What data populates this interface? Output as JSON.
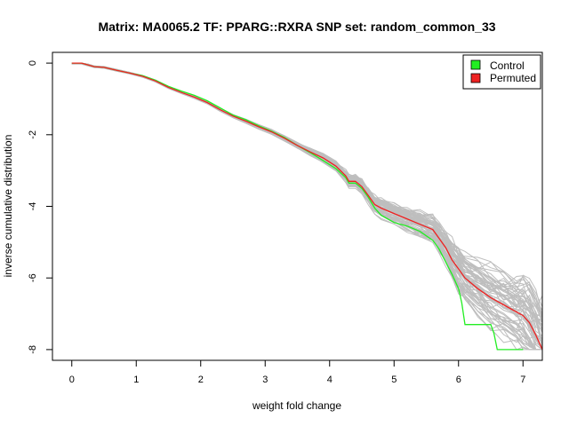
{
  "chart_data": {
    "type": "line",
    "title": "Matrix: MA0065.2 TF: PPARG::RXRA SNP set: random_common_33",
    "xlabel": "weight fold change",
    "ylabel": "inverse cumulative distribution",
    "xlim": [
      -0.3,
      7.3
    ],
    "ylim": [
      -8.3,
      0.3
    ],
    "x_ticks": [
      0,
      1,
      2,
      3,
      4,
      5,
      6,
      7
    ],
    "y_ticks": [
      0,
      -2,
      -4,
      -6,
      -8
    ],
    "legend": {
      "position": "top-right",
      "entries": [
        {
          "label": "Control",
          "color": "#22ee22"
        },
        {
          "label": "Permuted",
          "color": "#ee2222"
        }
      ]
    },
    "colors": {
      "background_curves": "#bebebe",
      "control": "#22ee22",
      "permuted": "#ee2222",
      "axis": "#000000"
    },
    "series": [
      {
        "name": "Control",
        "color": "#22ee22",
        "x": [
          0,
          0.15,
          0.25,
          0.35,
          0.5,
          0.7,
          0.9,
          1.1,
          1.3,
          1.5,
          1.7,
          1.9,
          2.1,
          2.3,
          2.5,
          2.7,
          2.9,
          3.1,
          3.3,
          3.5,
          3.7,
          3.9,
          4.1,
          4.25,
          4.3,
          4.4,
          4.5,
          4.6,
          4.7,
          4.8,
          5.0,
          5.2,
          5.4,
          5.6,
          5.7,
          5.8,
          5.9,
          6.0,
          6.05,
          6.1,
          6.2,
          6.5,
          6.55,
          6.6,
          7.0
        ],
        "y": [
          0,
          0,
          -0.05,
          -0.1,
          -0.12,
          -0.2,
          -0.28,
          -0.35,
          -0.48,
          -0.65,
          -0.78,
          -0.9,
          -1.05,
          -1.25,
          -1.45,
          -1.58,
          -1.75,
          -1.9,
          -2.08,
          -2.3,
          -2.5,
          -2.72,
          -2.95,
          -3.2,
          -3.35,
          -3.35,
          -3.5,
          -3.75,
          -4.05,
          -4.25,
          -4.45,
          -4.55,
          -4.7,
          -4.95,
          -5.2,
          -5.55,
          -5.9,
          -6.3,
          -6.7,
          -7.3,
          -7.3,
          -7.3,
          -7.55,
          -8.0,
          -8.0
        ]
      },
      {
        "name": "Permuted",
        "color": "#ee2222",
        "x": [
          0,
          0.15,
          0.25,
          0.35,
          0.5,
          0.7,
          0.9,
          1.1,
          1.3,
          1.5,
          1.7,
          1.9,
          2.1,
          2.3,
          2.5,
          2.7,
          2.9,
          3.1,
          3.3,
          3.5,
          3.7,
          3.9,
          4.1,
          4.25,
          4.3,
          4.4,
          4.5,
          4.6,
          4.7,
          4.8,
          5.0,
          5.2,
          5.4,
          5.6,
          5.7,
          5.8,
          5.9,
          6.0,
          6.1,
          6.3,
          6.5,
          6.7,
          6.9,
          7.0,
          7.1,
          7.2,
          7.3
        ],
        "y": [
          0,
          0,
          -0.05,
          -0.1,
          -0.12,
          -0.2,
          -0.28,
          -0.37,
          -0.5,
          -0.68,
          -0.82,
          -0.95,
          -1.1,
          -1.3,
          -1.48,
          -1.62,
          -1.78,
          -1.92,
          -2.1,
          -2.3,
          -2.48,
          -2.65,
          -2.88,
          -3.15,
          -3.3,
          -3.3,
          -3.45,
          -3.7,
          -3.95,
          -4.05,
          -4.2,
          -4.35,
          -4.5,
          -4.65,
          -4.9,
          -5.15,
          -5.5,
          -5.75,
          -6.0,
          -6.3,
          -6.55,
          -6.75,
          -6.95,
          -7.05,
          -7.25,
          -7.6,
          -8.0
        ]
      }
    ]
  }
}
